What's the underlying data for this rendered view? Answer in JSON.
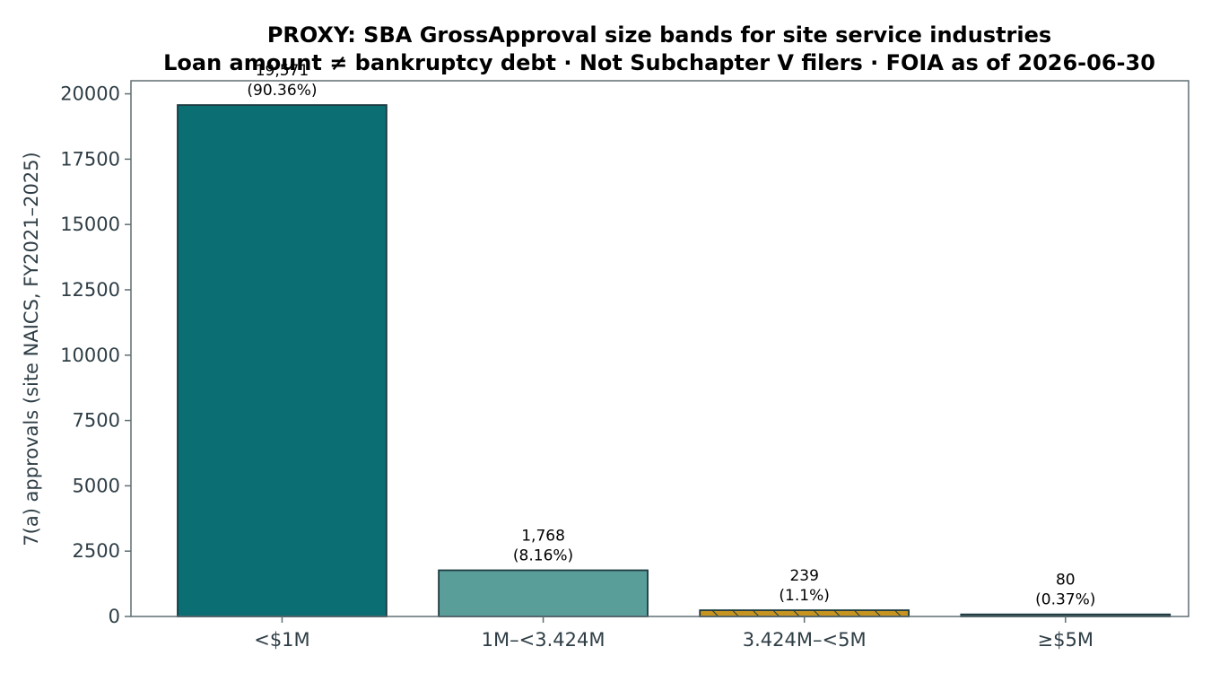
{
  "chart_data": {
    "type": "bar",
    "title": "PROXY: SBA GrossApproval size bands for site service industries",
    "subtitle": "Loan amount ≠ bankruptcy debt · Not Subchapter V filers · FOIA as of 2026-06-30",
    "xlabel": "",
    "ylabel": "7(a) approvals (site NAICS, FY2021–2025)",
    "ylim": [
      0,
      20500
    ],
    "yticks": [
      0,
      2500,
      5000,
      7500,
      10000,
      12500,
      15000,
      17500,
      20000
    ],
    "grid": false,
    "categories": [
      "<$1M",
      "1M–<3.424M",
      "3.424M–<5M",
      "≥$5M"
    ],
    "values": [
      19571,
      1768,
      239,
      80
    ],
    "count_labels": [
      "19,571",
      "1,768",
      "239",
      "80"
    ],
    "percent_labels": [
      "(90.36%)",
      "(8.16%)",
      "(1.1%)",
      "(0.37%)"
    ],
    "colors": [
      "#0a6e72",
      "#5a9e99",
      "#c79420",
      "#3c5058"
    ],
    "hatched": [
      false,
      false,
      true,
      false
    ],
    "edge_color": "#1c3a40",
    "axes_color": "#5f6e72"
  }
}
